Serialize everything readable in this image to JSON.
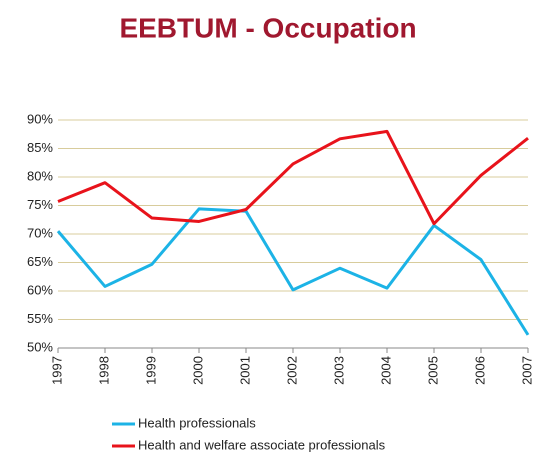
{
  "chart_data": {
    "type": "line",
    "title": "EEBTUM - Occupation",
    "categories": [
      "1997",
      "1998",
      "1999",
      "2000",
      "2001",
      "2002",
      "2003",
      "2004",
      "2005",
      "2006",
      "2007"
    ],
    "series": [
      {
        "name": "Health professionals",
        "color": "#1cb3e6",
        "values": [
          70.5,
          60.8,
          64.7,
          74.4,
          74.0,
          60.2,
          64.0,
          60.5,
          71.5,
          65.5,
          52.3
        ]
      },
      {
        "name": "Health and welfare associate professionals",
        "color": "#e8131b",
        "values": [
          75.7,
          79.0,
          72.8,
          72.2,
          74.3,
          82.3,
          86.7,
          88.0,
          71.8,
          80.3,
          86.8
        ]
      }
    ],
    "ylim": [
      50,
      90
    ],
    "yticks": [
      {
        "value": 50,
        "label": "50%"
      },
      {
        "value": 55,
        "label": "55%"
      },
      {
        "value": 60,
        "label": "60%"
      },
      {
        "value": 65,
        "label": "65%"
      },
      {
        "value": 70,
        "label": "70%"
      },
      {
        "value": 75,
        "label": "75%"
      },
      {
        "value": 80,
        "label": "80%"
      },
      {
        "value": 85,
        "label": "85%"
      },
      {
        "value": 90,
        "label": "90%"
      }
    ],
    "grid": true,
    "legend": "bottom"
  }
}
